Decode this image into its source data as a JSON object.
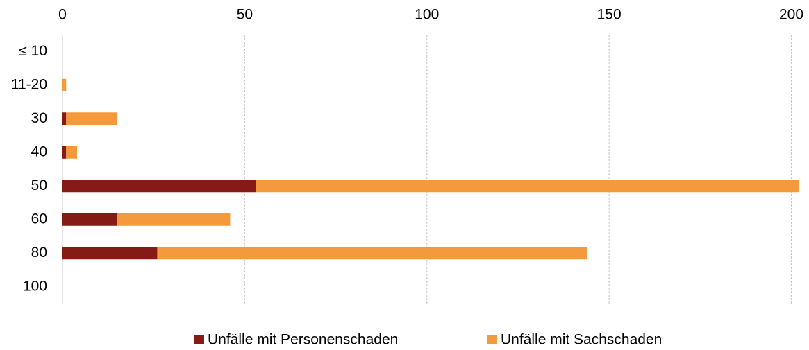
{
  "chart_data": {
    "type": "stacked_barh",
    "categories": [
      "≤ 10",
      "11-20",
      "30",
      "40",
      "50",
      "60",
      "80",
      "100"
    ],
    "series": [
      {
        "name": "Unfälle mit Personenschaden",
        "color": "#861a14",
        "values": [
          0,
          0,
          1,
          1,
          53,
          15,
          26,
          0
        ]
      },
      {
        "name": "Unfälle mit Sachschaden",
        "color": "#f59a3c",
        "values": [
          0,
          1,
          14,
          3,
          149,
          31,
          118,
          0
        ]
      }
    ],
    "xlim": [
      0,
      202
    ],
    "xticks": [
      0,
      50,
      100,
      150,
      200
    ],
    "grid": true,
    "legend": "bottom"
  }
}
